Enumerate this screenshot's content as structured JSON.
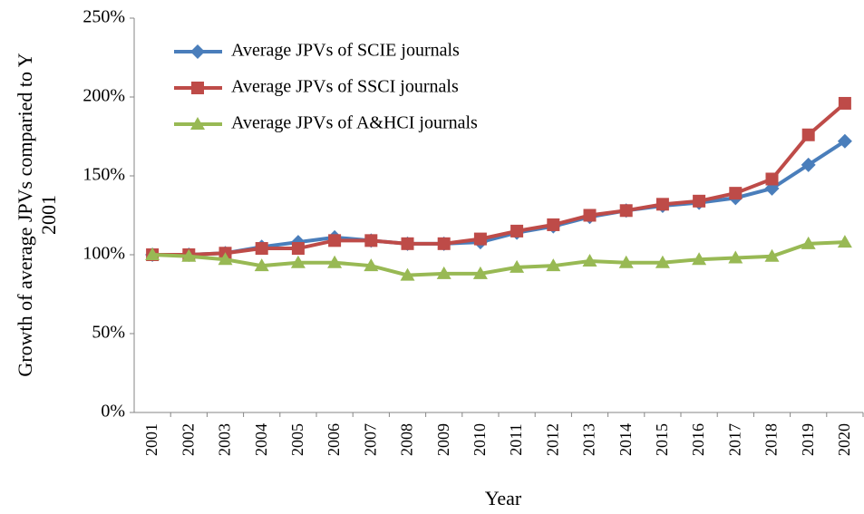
{
  "chart_data": {
    "type": "line",
    "xlabel": "Year",
    "ylabel": [
      "Growth of average JPVs comparied to Y",
      "2001"
    ],
    "categories": [
      "2001",
      "2002",
      "2003",
      "2004",
      "2005",
      "2006",
      "2007",
      "2008",
      "2009",
      "2010",
      "2011",
      "2012",
      "2013",
      "2014",
      "2015",
      "2016",
      "2017",
      "2018",
      "2019",
      "2020"
    ],
    "series": [
      {
        "name": "Average JPVs of SCIE journals",
        "color": "#4a7ebb",
        "marker": "diamond",
        "values": [
          100,
          100,
          101,
          105,
          108,
          111,
          109,
          107,
          107,
          108,
          114,
          118,
          124,
          128,
          131,
          133,
          136,
          142,
          157,
          172
        ]
      },
      {
        "name": "Average JPVs of SSCI journals",
        "color": "#be4b48",
        "marker": "square",
        "values": [
          100,
          100,
          101,
          104,
          104,
          109,
          109,
          107,
          107,
          110,
          115,
          119,
          125,
          128,
          132,
          134,
          139,
          148,
          176,
          196
        ]
      },
      {
        "name": "Average JPVs of A&HCI journals",
        "color": "#98b954",
        "marker": "triangle",
        "values": [
          100,
          99,
          97,
          93,
          95,
          95,
          93,
          87,
          88,
          88,
          92,
          93,
          96,
          95,
          95,
          97,
          98,
          99,
          107,
          108
        ]
      }
    ],
    "ylim": [
      0,
      250
    ],
    "yticks": [
      {
        "value": 0,
        "label": "0%"
      },
      {
        "value": 50,
        "label": "50%"
      },
      {
        "value": 100,
        "label": "100%"
      },
      {
        "value": 150,
        "label": "150%"
      },
      {
        "value": 200,
        "label": "200%"
      },
      {
        "value": 250,
        "label": "250%"
      }
    ],
    "grid": false,
    "legend": "top-left"
  }
}
